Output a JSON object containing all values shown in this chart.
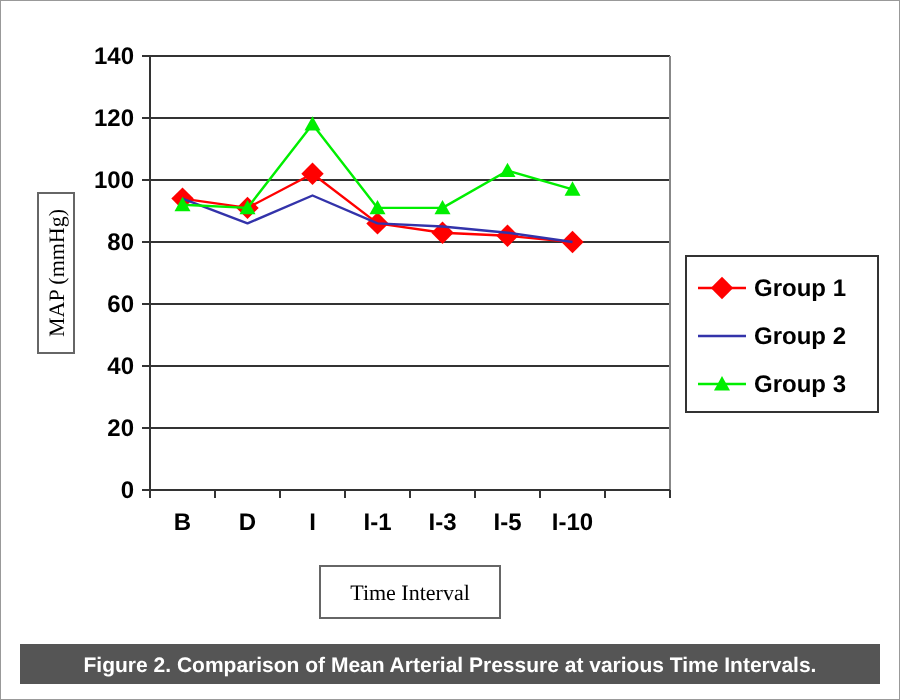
{
  "chart_data": {
    "type": "line",
    "ylabel": "MAP (mmHg)",
    "xlabel": "Time Interval",
    "annotations": [
      "Figure 2. Comparison of Mean Arterial Pressure at various Time Intervals."
    ],
    "categories": [
      "B",
      "D",
      "I",
      "I-1",
      "I-3",
      "I-5",
      "I-10",
      null
    ],
    "ylim": [
      0,
      140
    ],
    "yticks": [
      0,
      20,
      40,
      60,
      80,
      100,
      120,
      140
    ],
    "grid": "y",
    "legend": "right",
    "series": [
      {
        "name": "Group 1",
        "color": "#ff0000",
        "marker": "diamond",
        "values": [
          94,
          91,
          102,
          86,
          83,
          82,
          80,
          null
        ]
      },
      {
        "name": "Group 2",
        "color": "#3333aa",
        "marker": "none",
        "values": [
          94,
          86,
          95,
          86,
          85,
          83,
          80,
          null
        ]
      },
      {
        "name": "Group 3",
        "color": "#00ee00",
        "marker": "triangle",
        "values": [
          92,
          91,
          118,
          91,
          91,
          103,
          97,
          null
        ]
      }
    ]
  }
}
